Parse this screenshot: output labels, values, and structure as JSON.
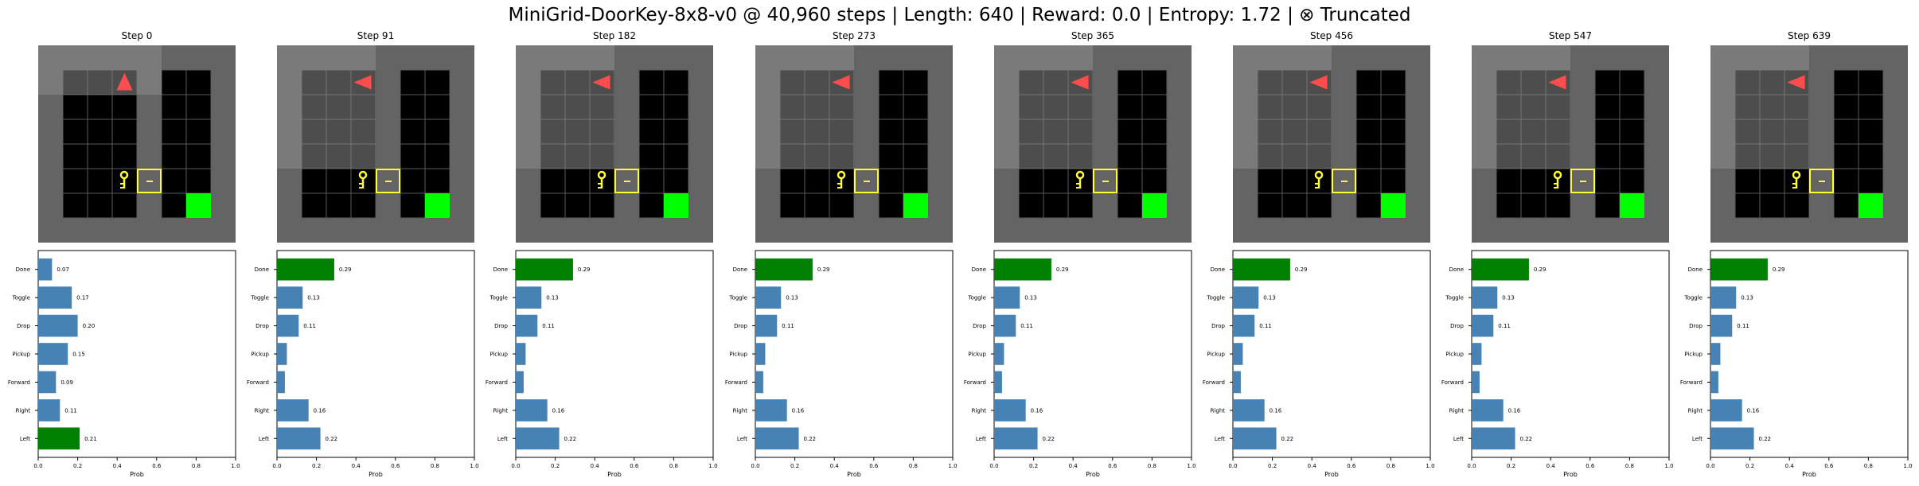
{
  "title": "MiniGrid-DoorKey-8x8-v0 @ 40,960 steps | Length: 640 | Reward: 0.0 | Entropy: 1.72 | ⊗ Truncated",
  "colors": {
    "bar_default": "#4682b4",
    "bar_selected": "#008000",
    "goal": "#00ff00",
    "agent": "#ff4d4d",
    "key": "#ffff33",
    "door_frame": "#ffff33",
    "wall": "#646464",
    "unseen_overlay": "#8c8c8c",
    "floor": "#000000",
    "grid_line": "#5a5a5a"
  },
  "icons": {
    "agent": "triangle-agent-icon",
    "key": "key-icon",
    "door": "locked-door-icon",
    "goal": "goal-square-icon"
  },
  "chart_data": [
    {
      "type": "bar",
      "orientation": "horizontal",
      "step_label": "Step 0",
      "agent_direction": "up",
      "categories": [
        "Done",
        "Toggle",
        "Drop",
        "Pickup",
        "Forward",
        "Right",
        "Left"
      ],
      "values": [
        0.07,
        0.17,
        0.2,
        0.15,
        0.09,
        0.11,
        0.21
      ],
      "value_labels": [
        "0.07",
        "0.17",
        "0.20",
        "0.15",
        "0.09",
        "0.11",
        "0.21"
      ],
      "selected": "Left",
      "xlabel": "Prob",
      "xlim": [
        0,
        1.0
      ],
      "xticks": [
        "0.0",
        "0.2",
        "0.4",
        "0.6",
        "0.8",
        "1.0"
      ]
    },
    {
      "type": "bar",
      "orientation": "horizontal",
      "step_label": "Step 91",
      "agent_direction": "left",
      "categories": [
        "Done",
        "Toggle",
        "Drop",
        "Pickup",
        "Forward",
        "Right",
        "Left"
      ],
      "values": [
        0.29,
        0.13,
        0.11,
        0.05,
        0.04,
        0.16,
        0.22
      ],
      "value_labels": [
        "0.29",
        "0.13",
        "0.11",
        "",
        "",
        "0.16",
        "0.22"
      ],
      "selected": "Done",
      "xlabel": "Prob",
      "xlim": [
        0,
        1.0
      ],
      "xticks": [
        "0.0",
        "0.2",
        "0.4",
        "0.6",
        "0.8",
        "1.0"
      ]
    },
    {
      "type": "bar",
      "orientation": "horizontal",
      "step_label": "Step 182",
      "agent_direction": "left",
      "categories": [
        "Done",
        "Toggle",
        "Drop",
        "Pickup",
        "Forward",
        "Right",
        "Left"
      ],
      "values": [
        0.29,
        0.13,
        0.11,
        0.05,
        0.04,
        0.16,
        0.22
      ],
      "value_labels": [
        "0.29",
        "0.13",
        "0.11",
        "",
        "",
        "0.16",
        "0.22"
      ],
      "selected": "Done",
      "xlabel": "Prob",
      "xlim": [
        0,
        1.0
      ],
      "xticks": [
        "0.0",
        "0.2",
        "0.4",
        "0.6",
        "0.8",
        "1.0"
      ]
    },
    {
      "type": "bar",
      "orientation": "horizontal",
      "step_label": "Step 273",
      "agent_direction": "left",
      "categories": [
        "Done",
        "Toggle",
        "Drop",
        "Pickup",
        "Forward",
        "Right",
        "Left"
      ],
      "values": [
        0.29,
        0.13,
        0.11,
        0.05,
        0.04,
        0.16,
        0.22
      ],
      "value_labels": [
        "0.29",
        "0.13",
        "0.11",
        "",
        "",
        "0.16",
        "0.22"
      ],
      "selected": "Done",
      "xlabel": "Prob",
      "xlim": [
        0,
        1.0
      ],
      "xticks": [
        "0.0",
        "0.2",
        "0.4",
        "0.6",
        "0.8",
        "1.0"
      ]
    },
    {
      "type": "bar",
      "orientation": "horizontal",
      "step_label": "Step 365",
      "agent_direction": "left",
      "categories": [
        "Done",
        "Toggle",
        "Drop",
        "Pickup",
        "Forward",
        "Right",
        "Left"
      ],
      "values": [
        0.29,
        0.13,
        0.11,
        0.05,
        0.04,
        0.16,
        0.22
      ],
      "value_labels": [
        "0.29",
        "0.13",
        "0.11",
        "",
        "",
        "0.16",
        "0.22"
      ],
      "selected": "Done",
      "xlabel": "Prob",
      "xlim": [
        0,
        1.0
      ],
      "xticks": [
        "0.0",
        "0.2",
        "0.4",
        "0.6",
        "0.8",
        "1.0"
      ]
    },
    {
      "type": "bar",
      "orientation": "horizontal",
      "step_label": "Step 456",
      "agent_direction": "left",
      "categories": [
        "Done",
        "Toggle",
        "Drop",
        "Pickup",
        "Forward",
        "Right",
        "Left"
      ],
      "values": [
        0.29,
        0.13,
        0.11,
        0.05,
        0.04,
        0.16,
        0.22
      ],
      "value_labels": [
        "0.29",
        "0.13",
        "0.11",
        "",
        "",
        "0.16",
        "0.22"
      ],
      "selected": "Done",
      "xlabel": "Prob",
      "xlim": [
        0,
        1.0
      ],
      "xticks": [
        "0.0",
        "0.2",
        "0.4",
        "0.6",
        "0.8",
        "1.0"
      ]
    },
    {
      "type": "bar",
      "orientation": "horizontal",
      "step_label": "Step 547",
      "agent_direction": "left",
      "categories": [
        "Done",
        "Toggle",
        "Drop",
        "Pickup",
        "Forward",
        "Right",
        "Left"
      ],
      "values": [
        0.29,
        0.13,
        0.11,
        0.05,
        0.04,
        0.16,
        0.22
      ],
      "value_labels": [
        "0.29",
        "0.13",
        "0.11",
        "",
        "",
        "0.16",
        "0.22"
      ],
      "selected": "Done",
      "xlabel": "Prob",
      "xlim": [
        0,
        1.0
      ],
      "xticks": [
        "0.0",
        "0.2",
        "0.4",
        "0.6",
        "0.8",
        "1.0"
      ]
    },
    {
      "type": "bar",
      "orientation": "horizontal",
      "step_label": "Step 639",
      "agent_direction": "left",
      "categories": [
        "Done",
        "Toggle",
        "Drop",
        "Pickup",
        "Forward",
        "Right",
        "Left"
      ],
      "values": [
        0.29,
        0.13,
        0.11,
        0.05,
        0.04,
        0.16,
        0.22
      ],
      "value_labels": [
        "0.29",
        "0.13",
        "0.11",
        "",
        "",
        "0.16",
        "0.22"
      ],
      "selected": "Done",
      "xlabel": "Prob",
      "xlim": [
        0,
        1.0
      ],
      "xticks": [
        "0.0",
        "0.2",
        "0.4",
        "0.6",
        "0.8",
        "1.0"
      ]
    }
  ]
}
